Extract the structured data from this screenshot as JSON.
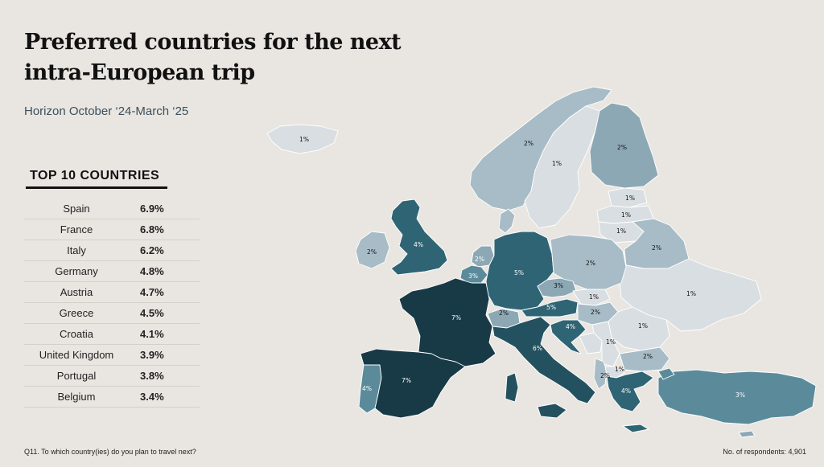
{
  "title": "Preferred countries for the next intra-European trip",
  "subtitle": "Horizon October ‘24-March ‘25",
  "top_heading": "TOP 10 COUNTRIES",
  "top_countries": [
    {
      "country": "Spain",
      "value": "6.9%"
    },
    {
      "country": "France",
      "value": "6.8%"
    },
    {
      "country": "Italy",
      "value": "6.2%"
    },
    {
      "country": "Germany",
      "value": "4.8%"
    },
    {
      "country": "Austria",
      "value": "4.7%"
    },
    {
      "country": "Greece",
      "value": "4.5%"
    },
    {
      "country": "Croatia",
      "value": "4.1%"
    },
    {
      "country": "United Kingdom",
      "value": "3.9%"
    },
    {
      "country": "Portugal",
      "value": "3.8%"
    },
    {
      "country": "Belgium",
      "value": "3.4%"
    }
  ],
  "footnote": "Q11. To which country(ies) do you plan to travel next?",
  "respondents": "No. of respondents: 4,901",
  "colors": {
    "background": "#e9e6e1",
    "p1": "#d9dee2",
    "p2": "#a7bcc6",
    "p3": "#8ca8b5",
    "p4": "#5b8b9b",
    "p5": "#2f6475",
    "p6": "#24515f",
    "p7": "#183a47",
    "no_data": "#e4e1dc"
  },
  "map_labels": {
    "iceland": "1%",
    "norway": "2%",
    "sweden": "1%",
    "finland": "2%",
    "estonia": "1%",
    "latvia": "1%",
    "lithuania": "1%",
    "belarus": "2%",
    "ireland": "2%",
    "uk": "4%",
    "netherlands": "2%",
    "belgium": "3%",
    "denmark": "",
    "germany": "5%",
    "poland": "2%",
    "czechia": "3%",
    "slovakia": "1%",
    "austria": "5%",
    "hungary": "2%",
    "switzerland": "2%",
    "france": "7%",
    "italy": "6%",
    "slovenia_croatia": "4%",
    "bosnia": "1%",
    "serbia": "1%",
    "romania": "1%",
    "ukraine": "1%",
    "bulgaria": "2%",
    "montenegro_albania": "2%",
    "north_macedonia": "1%",
    "greece": "4%",
    "spain": "7%",
    "portugal": "4%",
    "turkey": "3%",
    "cyprus": ""
  }
}
